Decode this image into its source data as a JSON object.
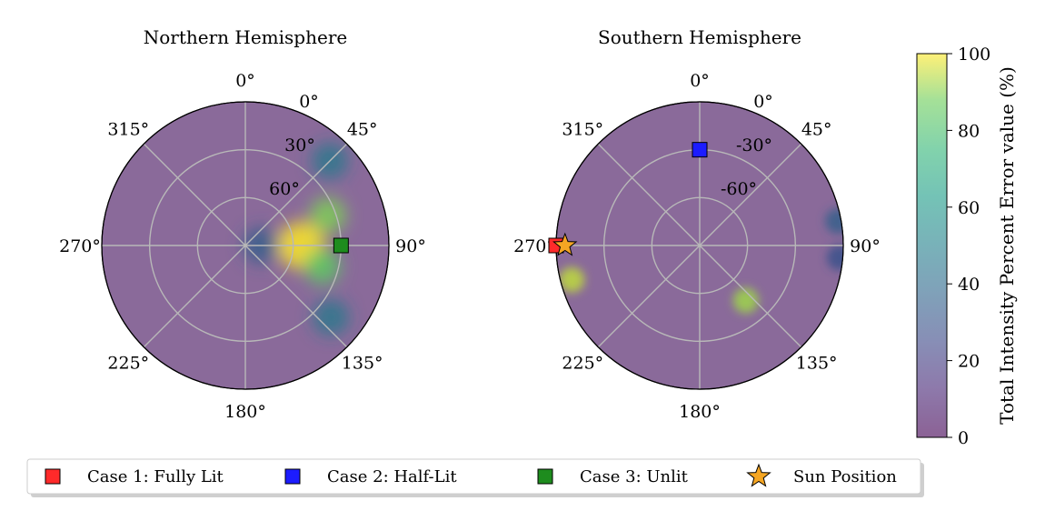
{
  "chart_data": {
    "type": "heatmap",
    "projection": "polar",
    "colormap": "viridis",
    "colorbar": {
      "label": "Total Intensity Percent Error value (%)",
      "range": [
        0,
        100
      ],
      "ticks": [
        "0",
        "20",
        "40",
        "60",
        "80",
        "100"
      ]
    },
    "panels": [
      {
        "title": "Northern Hemisphere",
        "azimuth_ticks": [
          "0°",
          "45°",
          "90°",
          "135°",
          "180°",
          "225°",
          "270°",
          "315°"
        ],
        "radial_ticks": [
          "0°",
          "30°",
          "60°"
        ],
        "hotspots": [
          {
            "azimuth": 90,
            "colatitude": 35,
            "value": 100
          },
          {
            "azimuth": 70,
            "colatitude": 55,
            "value": 80
          },
          {
            "azimuth": 105,
            "colatitude": 50,
            "value": 75
          },
          {
            "azimuth": 45,
            "colatitude": 75,
            "value": 40
          },
          {
            "azimuth": 130,
            "colatitude": 70,
            "value": 40
          },
          {
            "azimuth": 90,
            "colatitude": 10,
            "value": 30
          }
        ],
        "markers": [
          {
            "series": "Case 3: Unlit",
            "azimuth": 90,
            "latitude": 30
          }
        ]
      },
      {
        "title": "Southern Hemisphere",
        "azimuth_ticks": [
          "0°",
          "45°",
          "90°",
          "135°",
          "180°",
          "225°",
          "270°",
          "315°"
        ],
        "radial_ticks": [
          "0°",
          "-30°",
          "-60°"
        ],
        "hotspots": [
          {
            "azimuth": 255,
            "colatitude": 83,
            "value": 90
          },
          {
            "azimuth": 140,
            "colatitude": 45,
            "value": 85
          },
          {
            "azimuth": 80,
            "colatitude": 88,
            "value": 30
          },
          {
            "azimuth": 95,
            "colatitude": 88,
            "value": 25
          }
        ],
        "markers": [
          {
            "series": "Case 2: Half-Lit",
            "azimuth": 0,
            "latitude": -30
          },
          {
            "series": "Case 1: Fully Lit",
            "azimuth": 270,
            "latitude": 0
          },
          {
            "series": "Sun Position",
            "azimuth": 270,
            "latitude": 1
          }
        ]
      }
    ],
    "legend": {
      "placement": "bottom",
      "items": [
        {
          "label": "Case 1: Fully Lit",
          "marker": "square",
          "color": "#ff2a2a"
        },
        {
          "label": "Case 2: Half-Lit",
          "marker": "square",
          "color": "#1c1cff"
        },
        {
          "label": "Case 3: Unlit",
          "marker": "square",
          "color": "#1e8c1e"
        },
        {
          "label": "Sun Position",
          "marker": "star",
          "color": "#f5a623"
        }
      ]
    }
  }
}
